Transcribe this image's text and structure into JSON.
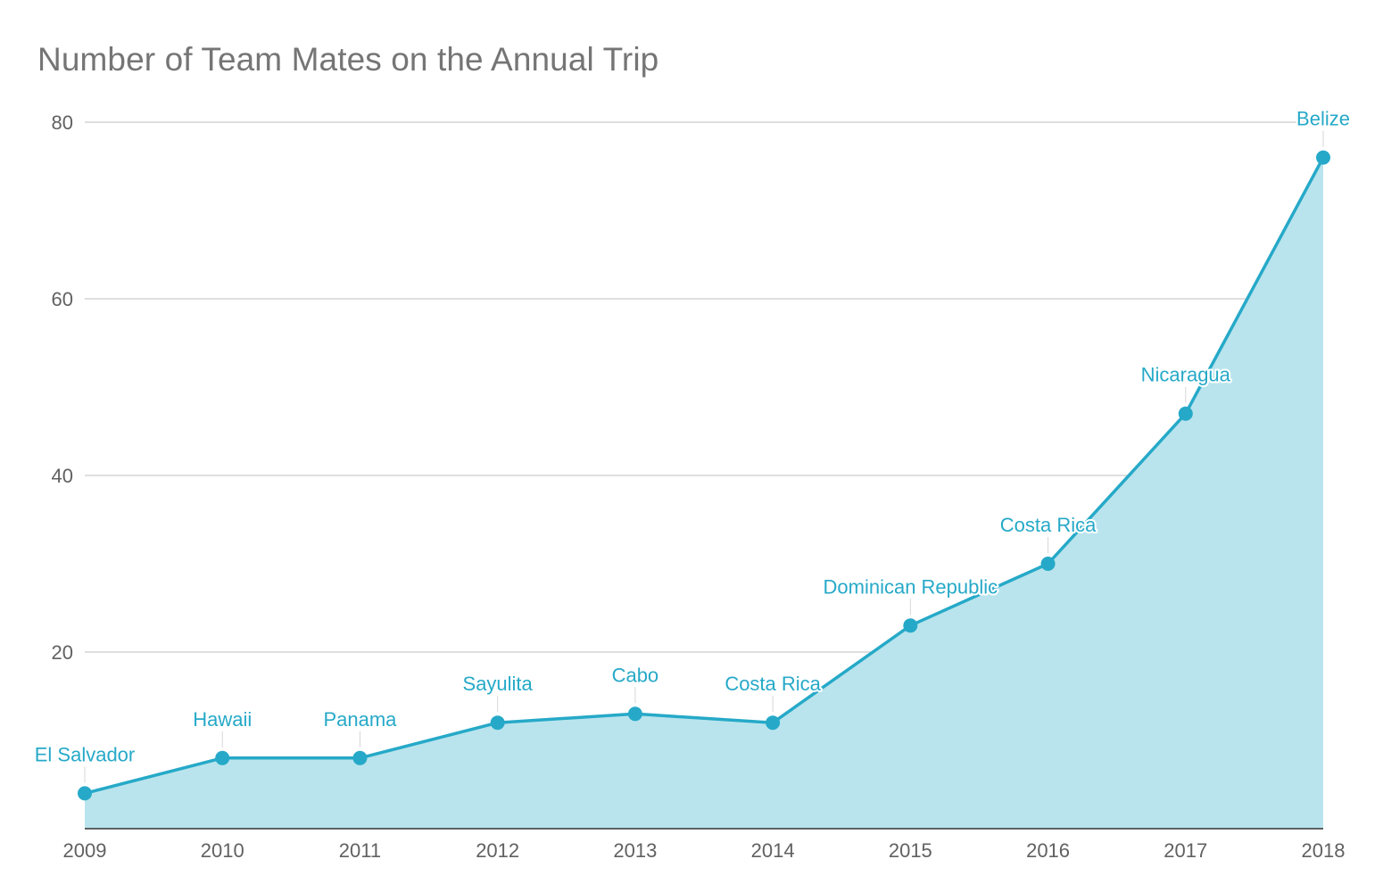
{
  "chart_data": {
    "type": "area",
    "title": "Number of Team Mates on the Annual Trip",
    "xlabel": "",
    "ylabel": "",
    "x": [
      "2009",
      "2010",
      "2011",
      "2012",
      "2013",
      "2014",
      "2015",
      "2016",
      "2017",
      "2018"
    ],
    "series": [
      {
        "values": [
          4,
          8,
          8,
          12,
          13,
          12,
          23,
          30,
          47,
          76
        ],
        "point_labels": [
          "El Salvador",
          "Hawaii",
          "Panama",
          "Sayulita",
          "Cabo",
          "Costa Rica",
          "Dominican Republic",
          "Costa Rica",
          "Nicaragua",
          "Belize"
        ]
      }
    ],
    "ylim": [
      0,
      80
    ],
    "y_ticks": [
      20,
      40,
      60,
      80
    ],
    "grid": true,
    "legend": "none",
    "colors": {
      "line": "#26a9c8",
      "fill": "#b9e4ed",
      "grid": "#cccccc",
      "axis": "#333333",
      "title": "#757575",
      "tick_text": "#616161"
    }
  }
}
